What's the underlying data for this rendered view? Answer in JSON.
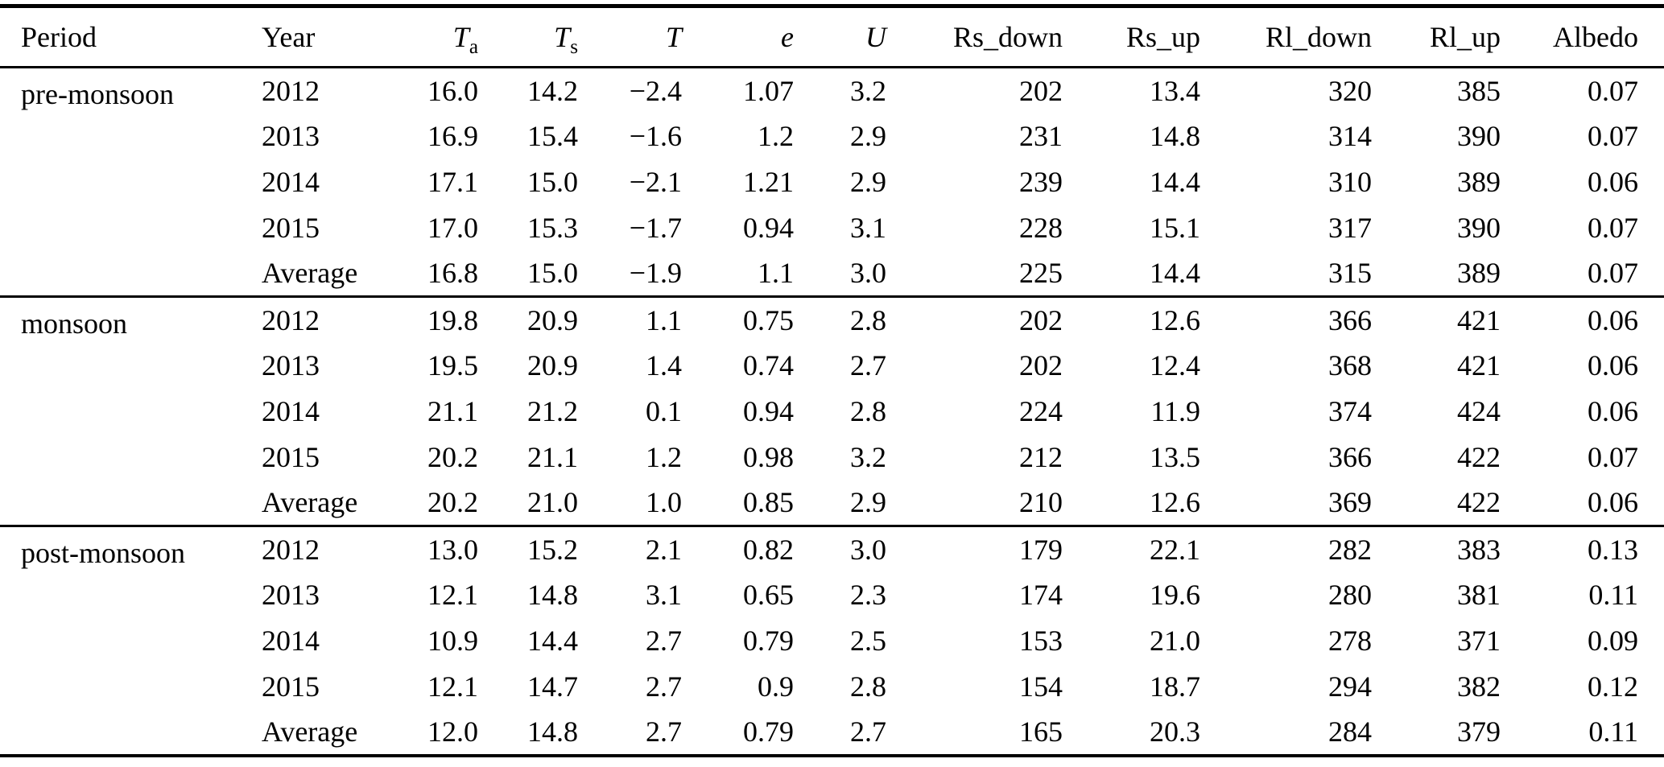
{
  "colors": {
    "text": "#000000",
    "background": "#ffffff",
    "rule": "#000000"
  },
  "table": {
    "columns": [
      {
        "key": "period",
        "label": "Period",
        "sub": "",
        "italic": false,
        "align": "left"
      },
      {
        "key": "year",
        "label": "Year",
        "sub": "",
        "italic": false,
        "align": "left"
      },
      {
        "key": "ta",
        "label": "T",
        "sub": "a",
        "italic": true,
        "align": "right"
      },
      {
        "key": "ts",
        "label": "T",
        "sub": "s",
        "italic": true,
        "align": "right"
      },
      {
        "key": "t",
        "label": "T",
        "sub": "",
        "italic": true,
        "align": "right"
      },
      {
        "key": "e",
        "label": "e",
        "sub": "",
        "italic": true,
        "align": "right"
      },
      {
        "key": "u",
        "label": "U",
        "sub": "",
        "italic": true,
        "align": "right"
      },
      {
        "key": "rs_down",
        "label": "Rs_down",
        "sub": "",
        "italic": false,
        "align": "right"
      },
      {
        "key": "rs_up",
        "label": "Rs_up",
        "sub": "",
        "italic": false,
        "align": "right"
      },
      {
        "key": "rl_down",
        "label": "Rl_down",
        "sub": "",
        "italic": false,
        "align": "right"
      },
      {
        "key": "rl_up",
        "label": "Rl_up",
        "sub": "",
        "italic": false,
        "align": "right"
      },
      {
        "key": "albedo",
        "label": "Albedo",
        "sub": "",
        "italic": false,
        "align": "right"
      }
    ],
    "sections": [
      {
        "period": "pre-monsoon",
        "rows": [
          {
            "year": "2012",
            "values": [
              "16.0",
              "14.2",
              "−2.4",
              "1.07",
              "3.2",
              "202",
              "13.4",
              "320",
              "385",
              "0.07"
            ]
          },
          {
            "year": "2013",
            "values": [
              "16.9",
              "15.4",
              "−1.6",
              "1.2",
              "2.9",
              "231",
              "14.8",
              "314",
              "390",
              "0.07"
            ]
          },
          {
            "year": "2014",
            "values": [
              "17.1",
              "15.0",
              "−2.1",
              "1.21",
              "2.9",
              "239",
              "14.4",
              "310",
              "389",
              "0.06"
            ]
          },
          {
            "year": "2015",
            "values": [
              "17.0",
              "15.3",
              "−1.7",
              "0.94",
              "3.1",
              "228",
              "15.1",
              "317",
              "390",
              "0.07"
            ]
          },
          {
            "year": "Average",
            "values": [
              "16.8",
              "15.0",
              "−1.9",
              "1.1",
              "3.0",
              "225",
              "14.4",
              "315",
              "389",
              "0.07"
            ]
          }
        ]
      },
      {
        "period": "monsoon",
        "rows": [
          {
            "year": "2012",
            "values": [
              "19.8",
              "20.9",
              "1.1",
              "0.75",
              "2.8",
              "202",
              "12.6",
              "366",
              "421",
              "0.06"
            ]
          },
          {
            "year": "2013",
            "values": [
              "19.5",
              "20.9",
              "1.4",
              "0.74",
              "2.7",
              "202",
              "12.4",
              "368",
              "421",
              "0.06"
            ]
          },
          {
            "year": "2014",
            "values": [
              "21.1",
              "21.2",
              "0.1",
              "0.94",
              "2.8",
              "224",
              "11.9",
              "374",
              "424",
              "0.06"
            ]
          },
          {
            "year": "2015",
            "values": [
              "20.2",
              "21.1",
              "1.2",
              "0.98",
              "3.2",
              "212",
              "13.5",
              "366",
              "422",
              "0.07"
            ]
          },
          {
            "year": "Average",
            "values": [
              "20.2",
              "21.0",
              "1.0",
              "0.85",
              "2.9",
              "210",
              "12.6",
              "369",
              "422",
              "0.06"
            ]
          }
        ]
      },
      {
        "period": "post-monsoon",
        "rows": [
          {
            "year": "2012",
            "values": [
              "13.0",
              "15.2",
              "2.1",
              "0.82",
              "3.0",
              "179",
              "22.1",
              "282",
              "383",
              "0.13"
            ]
          },
          {
            "year": "2013",
            "values": [
              "12.1",
              "14.8",
              "3.1",
              "0.65",
              "2.3",
              "174",
              "19.6",
              "280",
              "381",
              "0.11"
            ]
          },
          {
            "year": "2014",
            "values": [
              "10.9",
              "14.4",
              "2.7",
              "0.79",
              "2.5",
              "153",
              "21.0",
              "278",
              "371",
              "0.09"
            ]
          },
          {
            "year": "2015",
            "values": [
              "12.1",
              "14.7",
              "2.7",
              "0.9",
              "2.8",
              "154",
              "18.7",
              "294",
              "382",
              "0.12"
            ]
          },
          {
            "year": "Average",
            "values": [
              "12.0",
              "14.8",
              "2.7",
              "0.79",
              "2.7",
              "165",
              "20.3",
              "284",
              "379",
              "0.11"
            ]
          }
        ]
      }
    ]
  }
}
